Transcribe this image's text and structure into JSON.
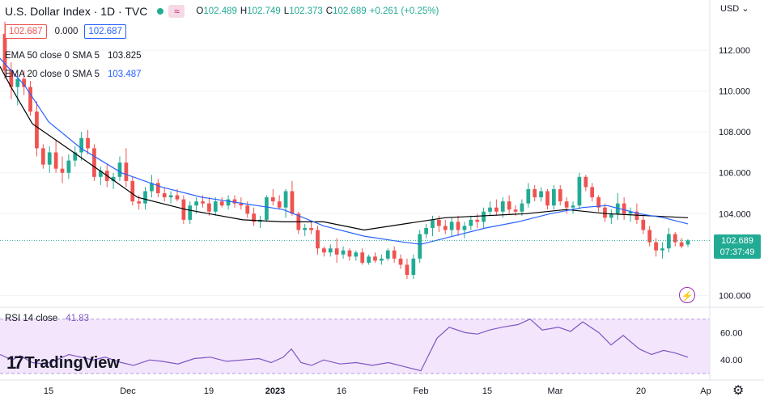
{
  "header": {
    "symbol": "U.S. Dollar Index · 1D · TVC",
    "o_label": "O",
    "o": "102.489",
    "h_label": "H",
    "h": "102.749",
    "l_label": "L",
    "l": "102.373",
    "c_label": "C",
    "c": "102.689",
    "change": "+0.261 (+0.25%)",
    "wave_icon": "≈"
  },
  "quote": {
    "bid": "102.687",
    "spread": "0.000",
    "ask": "102.687"
  },
  "indicators": [
    {
      "label": "EMA 50 close 0 SMA 5",
      "value": "103.825",
      "color": "#000000"
    },
    {
      "label": "EMA 20 close 0 SMA 5",
      "value": "103.487",
      "color": "#2962ff"
    }
  ],
  "rsi": {
    "label": "RSI 14 close",
    "value": "41.83",
    "color": "#7e57c2"
  },
  "logo": {
    "mark": "17",
    "text": "TradingView"
  },
  "price_axis": {
    "currency": "USD",
    "ticks": [
      "112.000",
      "110.000",
      "108.000",
      "106.000",
      "104.000",
      "100.000"
    ],
    "current_price": "102.689",
    "countdown": "07:37:49"
  },
  "rsi_axis": {
    "ticks": [
      "60.00",
      "40.00"
    ]
  },
  "time_axis": {
    "ticks": [
      "15",
      "Dec",
      "19",
      "2023",
      "16",
      "Feb",
      "15",
      "Mar",
      "20",
      "Ap"
    ]
  },
  "colors": {
    "up": "#22ab94",
    "down": "#ef5350",
    "ema50": "#000000",
    "ema20": "#2962ff",
    "rsi": "#7e57c2",
    "rsi_band": "#f3e5fc"
  },
  "icons": {
    "bolt": "lightning-icon",
    "gear": "gear-icon"
  },
  "chart_data": {
    "type": "candlestick",
    "ylim": [
      99.5,
      114.3
    ],
    "candles": [
      [
        112.8,
        113.4,
        110.6,
        111.0
      ],
      [
        111.0,
        111.4,
        109.6,
        110.2
      ],
      [
        110.2,
        110.7,
        109.3,
        110.6
      ],
      [
        110.6,
        111.0,
        109.8,
        110.2
      ],
      [
        110.2,
        110.5,
        108.8,
        109.0
      ],
      [
        109.0,
        109.5,
        106.8,
        107.2
      ],
      [
        107.2,
        107.4,
        106.2,
        106.4
      ],
      [
        106.4,
        107.3,
        106.0,
        107.0
      ],
      [
        107.0,
        107.6,
        106.0,
        106.2
      ],
      [
        106.2,
        106.8,
        105.5,
        106.0
      ],
      [
        106.0,
        106.9,
        105.7,
        106.6
      ],
      [
        106.6,
        107.3,
        106.3,
        107.0
      ],
      [
        107.0,
        108.0,
        106.6,
        107.7
      ],
      [
        107.7,
        108.1,
        106.9,
        107.2
      ],
      [
        107.2,
        107.4,
        105.6,
        105.8
      ],
      [
        105.8,
        106.3,
        105.4,
        106.1
      ],
      [
        106.1,
        106.4,
        105.3,
        105.6
      ],
      [
        105.6,
        106.0,
        105.2,
        105.8
      ],
      [
        105.8,
        106.8,
        105.6,
        106.5
      ],
      [
        106.5,
        107.2,
        105.3,
        105.6
      ],
      [
        105.6,
        105.8,
        104.4,
        104.6
      ],
      [
        104.6,
        104.9,
        104.2,
        104.5
      ],
      [
        104.5,
        105.3,
        104.2,
        105.1
      ],
      [
        105.1,
        105.9,
        104.8,
        105.5
      ],
      [
        105.5,
        105.7,
        104.8,
        105.0
      ],
      [
        105.0,
        105.3,
        104.6,
        104.8
      ],
      [
        104.8,
        105.1,
        104.5,
        104.9
      ],
      [
        104.9,
        105.2,
        104.6,
        104.7
      ],
      [
        104.7,
        104.9,
        103.5,
        103.7
      ],
      [
        103.7,
        104.6,
        103.5,
        104.4
      ],
      [
        104.4,
        104.8,
        104.0,
        104.6
      ],
      [
        104.6,
        104.9,
        104.3,
        104.5
      ],
      [
        104.5,
        104.8,
        103.9,
        104.1
      ],
      [
        104.1,
        104.8,
        103.9,
        104.6
      ],
      [
        104.6,
        104.8,
        104.3,
        104.4
      ],
      [
        104.4,
        104.9,
        104.2,
        104.7
      ],
      [
        104.7,
        104.9,
        104.3,
        104.5
      ],
      [
        104.5,
        104.8,
        104.2,
        104.4
      ],
      [
        104.4,
        104.6,
        103.8,
        104.0
      ],
      [
        104.0,
        104.3,
        103.4,
        103.6
      ],
      [
        103.6,
        103.9,
        103.3,
        103.7
      ],
      [
        103.7,
        104.9,
        103.6,
        104.8
      ],
      [
        104.8,
        105.2,
        104.4,
        104.6
      ],
      [
        104.6,
        104.9,
        104.2,
        104.3
      ],
      [
        104.3,
        105.2,
        103.8,
        105.1
      ],
      [
        105.1,
        105.6,
        103.9,
        104.0
      ],
      [
        104.0,
        104.1,
        103.0,
        103.2
      ],
      [
        103.2,
        103.5,
        102.9,
        103.3
      ],
      [
        103.3,
        103.6,
        103.0,
        103.2
      ],
      [
        103.2,
        103.4,
        102.0,
        102.3
      ],
      [
        102.3,
        102.4,
        101.9,
        102.1
      ],
      [
        102.1,
        102.5,
        101.9,
        102.3
      ],
      [
        102.3,
        102.8,
        101.6,
        102.0
      ],
      [
        102.0,
        102.4,
        101.8,
        102.2
      ],
      [
        102.2,
        102.3,
        101.7,
        101.9
      ],
      [
        101.9,
        102.2,
        101.7,
        102.1
      ],
      [
        102.1,
        102.3,
        101.5,
        101.6
      ],
      [
        101.6,
        102.0,
        101.5,
        101.9
      ],
      [
        101.9,
        102.1,
        101.6,
        101.7
      ],
      [
        101.7,
        102.0,
        101.5,
        101.8
      ],
      [
        101.8,
        102.3,
        101.7,
        102.2
      ],
      [
        102.2,
        102.4,
        101.6,
        101.8
      ],
      [
        101.8,
        102.0,
        101.3,
        101.5
      ],
      [
        101.5,
        101.8,
        100.8,
        101.0
      ],
      [
        101.0,
        102.0,
        100.8,
        101.8
      ],
      [
        101.8,
        103.2,
        101.6,
        103.0
      ],
      [
        103.0,
        103.5,
        102.8,
        103.3
      ],
      [
        103.3,
        103.9,
        102.9,
        103.7
      ],
      [
        103.7,
        103.9,
        103.1,
        103.4
      ],
      [
        103.4,
        103.7,
        103.0,
        103.2
      ],
      [
        103.2,
        103.8,
        102.9,
        103.6
      ],
      [
        103.6,
        103.9,
        102.9,
        103.2
      ],
      [
        103.2,
        103.6,
        102.8,
        103.4
      ],
      [
        103.4,
        103.9,
        103.2,
        103.7
      ],
      [
        103.7,
        104.0,
        103.3,
        103.6
      ],
      [
        103.6,
        104.3,
        103.3,
        104.1
      ],
      [
        104.1,
        104.6,
        103.9,
        104.3
      ],
      [
        104.3,
        104.7,
        103.9,
        104.1
      ],
      [
        104.1,
        104.8,
        103.8,
        104.6
      ],
      [
        104.6,
        104.9,
        104.0,
        104.2
      ],
      [
        104.2,
        104.4,
        103.9,
        104.1
      ],
      [
        104.1,
        104.7,
        103.9,
        104.5
      ],
      [
        104.5,
        105.5,
        104.3,
        105.2
      ],
      [
        105.2,
        105.4,
        104.6,
        104.8
      ],
      [
        104.8,
        105.3,
        104.6,
        105.1
      ],
      [
        105.1,
        105.2,
        104.2,
        104.4
      ],
      [
        104.4,
        105.4,
        104.2,
        105.2
      ],
      [
        105.2,
        105.4,
        104.4,
        104.6
      ],
      [
        104.6,
        104.8,
        104.0,
        104.3
      ],
      [
        104.3,
        104.6,
        104.0,
        104.4
      ],
      [
        104.4,
        106.0,
        104.2,
        105.8
      ],
      [
        105.8,
        105.9,
        105.1,
        105.3
      ],
      [
        105.3,
        105.5,
        104.6,
        104.8
      ],
      [
        104.8,
        104.9,
        104.1,
        104.3
      ],
      [
        104.3,
        104.5,
        103.6,
        103.8
      ],
      [
        103.8,
        104.2,
        103.5,
        104.0
      ],
      [
        104.0,
        105.0,
        103.7,
        104.5
      ],
      [
        104.5,
        104.8,
        103.7,
        104.0
      ],
      [
        104.0,
        104.3,
        103.6,
        104.1
      ],
      [
        104.1,
        104.5,
        103.5,
        103.7
      ],
      [
        103.7,
        103.9,
        103.0,
        103.2
      ],
      [
        103.2,
        103.4,
        102.4,
        102.6
      ],
      [
        102.6,
        102.8,
        101.9,
        102.2
      ],
      [
        102.2,
        102.6,
        101.8,
        102.3
      ],
      [
        102.3,
        103.3,
        102.1,
        103.0
      ],
      [
        103.0,
        103.1,
        102.4,
        102.6
      ],
      [
        102.6,
        102.8,
        102.3,
        102.4
      ],
      [
        102.49,
        102.75,
        102.37,
        102.69
      ]
    ],
    "ema50": [
      [
        0,
        111.2
      ],
      [
        15,
        110.1
      ],
      [
        40,
        108.4
      ],
      [
        80,
        107.3
      ],
      [
        120,
        106.2
      ],
      [
        170,
        104.8
      ],
      [
        230,
        104.2
      ],
      [
        300,
        103.7
      ],
      [
        350,
        103.6
      ],
      [
        400,
        103.6
      ],
      [
        450,
        103.2
      ],
      [
        500,
        103.5
      ],
      [
        550,
        103.8
      ],
      [
        600,
        103.9
      ],
      [
        650,
        104.0
      ],
      [
        700,
        104.2
      ],
      [
        750,
        104.0
      ],
      [
        800,
        103.9
      ],
      [
        850,
        103.8
      ]
    ],
    "ema20": [
      [
        0,
        111.6
      ],
      [
        30,
        110.3
      ],
      [
        60,
        108.5
      ],
      [
        100,
        107.2
      ],
      [
        150,
        106.0
      ],
      [
        200,
        105.3
      ],
      [
        250,
        104.8
      ],
      [
        300,
        104.5
      ],
      [
        350,
        104.2
      ],
      [
        400,
        103.4
      ],
      [
        450,
        102.9
      ],
      [
        500,
        102.6
      ],
      [
        520,
        102.5
      ],
      [
        560,
        102.9
      ],
      [
        600,
        103.3
      ],
      [
        640,
        103.6
      ],
      [
        680,
        104.0
      ],
      [
        720,
        104.3
      ],
      [
        750,
        104.4
      ],
      [
        790,
        104.0
      ],
      [
        820,
        103.8
      ],
      [
        850,
        103.5
      ]
    ],
    "rsi_ylim": [
      30,
      74
    ],
    "rsi": [
      [
        0,
        44
      ],
      [
        15,
        40
      ],
      [
        25,
        43
      ],
      [
        40,
        38
      ],
      [
        55,
        37
      ],
      [
        70,
        40
      ],
      [
        85,
        44
      ],
      [
        100,
        42
      ],
      [
        115,
        40
      ],
      [
        130,
        42
      ],
      [
        150,
        38
      ],
      [
        165,
        36
      ],
      [
        185,
        40
      ],
      [
        200,
        39
      ],
      [
        220,
        37
      ],
      [
        240,
        41
      ],
      [
        260,
        42
      ],
      [
        280,
        39
      ],
      [
        300,
        40
      ],
      [
        320,
        41
      ],
      [
        335,
        38
      ],
      [
        350,
        42
      ],
      [
        360,
        48
      ],
      [
        372,
        38
      ],
      [
        385,
        36
      ],
      [
        400,
        40
      ],
      [
        420,
        37
      ],
      [
        440,
        38
      ],
      [
        460,
        36
      ],
      [
        480,
        38
      ],
      [
        500,
        35
      ],
      [
        520,
        32
      ],
      [
        540,
        56
      ],
      [
        555,
        64
      ],
      [
        575,
        60
      ],
      [
        590,
        59
      ],
      [
        605,
        62
      ],
      [
        620,
        64
      ],
      [
        640,
        66
      ],
      [
        655,
        70
      ],
      [
        670,
        62
      ],
      [
        690,
        64
      ],
      [
        705,
        61
      ],
      [
        720,
        68
      ],
      [
        740,
        60
      ],
      [
        755,
        51
      ],
      [
        770,
        58
      ],
      [
        790,
        48
      ],
      [
        805,
        44
      ],
      [
        820,
        47
      ],
      [
        835,
        45
      ],
      [
        850,
        42
      ]
    ],
    "rsi_bands": [
      70,
      30
    ],
    "rsi_mid": 50
  }
}
